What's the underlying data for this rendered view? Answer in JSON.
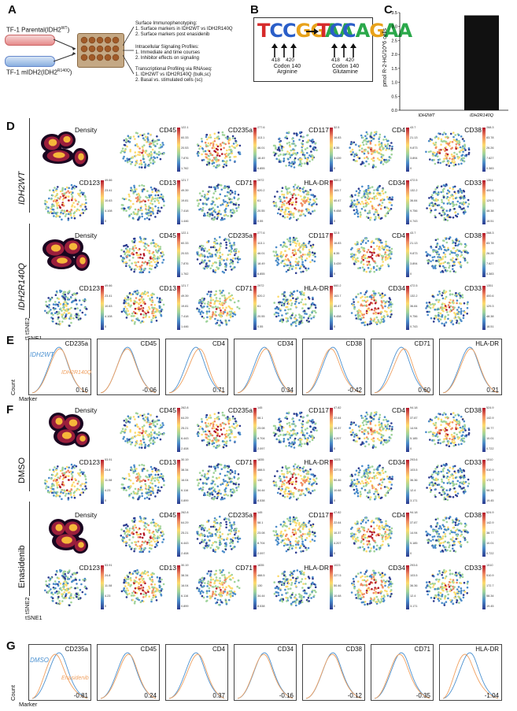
{
  "panelA": {
    "letter": "A",
    "parental": "TF-1 Parental(IDH2",
    "parental_sup": "WT",
    "mutant": "TF-1 mIDH2(IDH2",
    "mutant_sup": "R140Q",
    "bullets": [
      {
        "head": "Surface Immunophenotyping:",
        "lines": [
          "1. Surface markers in IDH2WT vs IDH2R140Q",
          "2. Surface markers post enasidenib"
        ]
      },
      {
        "head": "Intracellular Signaling Profiles:",
        "lines": [
          "1. Immediate and time courses",
          "2. Inhibitor effects on signaling"
        ]
      },
      {
        "head": "Transcriptional Profiling via RNAseq:",
        "lines": [
          "1. IDH2WT vs IDH2R140Q (bulk,sc)",
          "2. Basal vs. stimulated cells (sc)"
        ]
      }
    ]
  },
  "panelB": {
    "letter": "B",
    "seq1": "TCCGGAA",
    "seq2": "TCCAGAA",
    "pos": [
      "418",
      "420"
    ],
    "codon": "Codon 140",
    "aa1": "Arginine",
    "aa2": "Glutamine"
  },
  "panelC": {
    "letter": "C"
  },
  "chart_data": {
    "type": "bar",
    "categories": [
      "IDH2WT",
      "IDH2R140Q"
    ],
    "values": [
      0,
      3.4
    ],
    "ylabel": "pmol R-2-HG/10^6 cells",
    "ylim": [
      0,
      3.5
    ],
    "yticks": [
      "0.0",
      "0.5",
      "1.0",
      "1.5",
      "2.0",
      "2.5",
      "3.0",
      "3.5"
    ]
  },
  "panelD": {
    "letter": "D",
    "rowlabels": [
      "IDH2WT",
      "IDH2R140Q"
    ],
    "markers_row1": [
      "Density",
      "CD45",
      "CD235a",
      "CD117",
      "CD4",
      "CD38"
    ],
    "markers_row2": [
      "CD123",
      "CD13",
      "CD71",
      "HLA-DR",
      "CD34",
      "CD33"
    ],
    "axis_y": "tSNE2",
    "axis_x": "tSNE1",
    "scales_row1": [
      [],
      [
        "122.1",
        "60.33",
        "20.53",
        "7.876",
        "1.762"
      ],
      [
        "277.6",
        "113.1",
        "46.01",
        "18.49",
        "6.855"
      ],
      [
        "32.5",
        "16.83",
        "8.35",
        "3.439",
        "0"
      ],
      [
        "43.7",
        "21.13",
        "9.873",
        "3.894",
        "0"
      ],
      [
        "268.3",
        "83.78",
        "26.26",
        "7.627",
        "0.383"
      ]
    ],
    "scales_row2": [
      [
        "49.66",
        "23.41",
        "10.63",
        "4.108",
        "0"
      ],
      [
        "121.7",
        "49.39",
        "19.81",
        "7.418",
        "1.446"
      ],
      [
        "2972",
        "620.2",
        "61",
        "20.55",
        "0.55"
      ],
      [
        "660.2",
        "163.7",
        "40.47",
        "9.458",
        "0"
      ],
      [
        "472.5",
        "132.2",
        "36.84",
        "9.756",
        "0.743"
      ],
      [
        "1351",
        "400.6",
        "129.3",
        "48.38",
        "18.51"
      ]
    ]
  },
  "panelE": {
    "letter": "E",
    "legend_wt": "IDH2WT",
    "legend_mut": "IDH2R140Q",
    "hists": [
      {
        "name": "CD235a",
        "value": "0.16"
      },
      {
        "name": "CD45",
        "value": "-0.06"
      },
      {
        "name": "CD4",
        "value": "0.71"
      },
      {
        "name": "CD34",
        "value": "0.34"
      },
      {
        "name": "CD38",
        "value": "-0.42"
      },
      {
        "name": "CD71",
        "value": "0.60"
      },
      {
        "name": "HLA-DR",
        "value": "0.21"
      }
    ],
    "ylabel": "Count",
    "xlabel": "Marker"
  },
  "panelF": {
    "letter": "F",
    "rowlabels": [
      "DMSO",
      "Enasidenib"
    ],
    "markers_row1": [
      "Density",
      "CD45",
      "CD235a",
      "CD117",
      "CD4",
      "CD38"
    ],
    "markers_row2": [
      "CD123",
      "CD13",
      "CD71",
      "HLA-DR",
      "CD34",
      "CD33"
    ],
    "axis_y": "tSNE2",
    "axis_x": "tSNE1",
    "scales_row1": [
      [],
      [
        "262.8",
        "64.29",
        "25.21",
        "6.443",
        "2.408"
      ],
      [
        "145",
        "58.1",
        "23.08",
        "8.704",
        "2.097"
      ],
      [
        "47.82",
        "22.64",
        "10.37",
        "4.207",
        "0"
      ],
      [
        "94.18",
        "37.87",
        "14.94",
        "5.185",
        "0"
      ],
      [
        "524.9",
        "142.9",
        "38.77",
        "10.01",
        "0.722"
      ]
    ],
    "scales_row2": [
      [
        "53.91",
        "24.8",
        "11.08",
        "4.23",
        "0"
      ],
      [
        "30.19",
        "38.34",
        "16.04",
        "6.116",
        "0.899"
      ],
      [
        "1835",
        "488.5",
        "130",
        "34.44",
        "8.538"
      ],
      [
        "1023",
        "227.5",
        "50.46",
        "10.68",
        "0"
      ],
      [
        "293.6",
        "103.5",
        "36.36",
        "12.4",
        "3.171"
      ],
      [
        "1510",
        "510.9",
        "172.7",
        "58.34",
        "19.45"
      ]
    ]
  },
  "panelG": {
    "letter": "G",
    "legend_a": "DMSO",
    "legend_b": "Enasidenib",
    "hists": [
      {
        "name": "CD235a",
        "value": "-0.81"
      },
      {
        "name": "CD45",
        "value": "0.24"
      },
      {
        "name": "CD4",
        "value": "0.37"
      },
      {
        "name": "CD34",
        "value": "-0.16"
      },
      {
        "name": "CD38",
        "value": "-0.12"
      },
      {
        "name": "CD71",
        "value": "-0.35"
      },
      {
        "name": "HLA-DR",
        "value": "-1.04"
      }
    ],
    "ylabel": "Count",
    "xlabel": "Marker"
  },
  "colors": {
    "blue": "#4a90d0",
    "orange": "#f0a060",
    "bar": "#111111"
  }
}
